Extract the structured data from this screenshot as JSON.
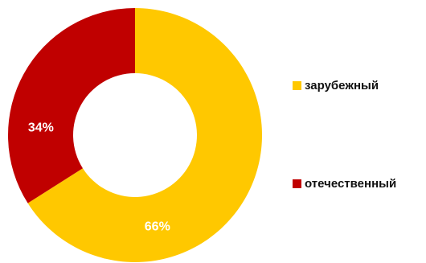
{
  "chart_data": {
    "type": "pie",
    "variant": "donut",
    "categories": [
      "зарубежный",
      "отечественный"
    ],
    "values": [
      66,
      34
    ],
    "labels": [
      "66%",
      "34%"
    ],
    "colors": [
      "#FFC800",
      "#C00000"
    ],
    "legend_position": "right",
    "start": "top",
    "direction": "clockwise"
  },
  "legend": {
    "items": [
      {
        "label": "зарубежный",
        "color": "#FFC800"
      },
      {
        "label": "отечественный",
        "color": "#C00000"
      }
    ]
  }
}
